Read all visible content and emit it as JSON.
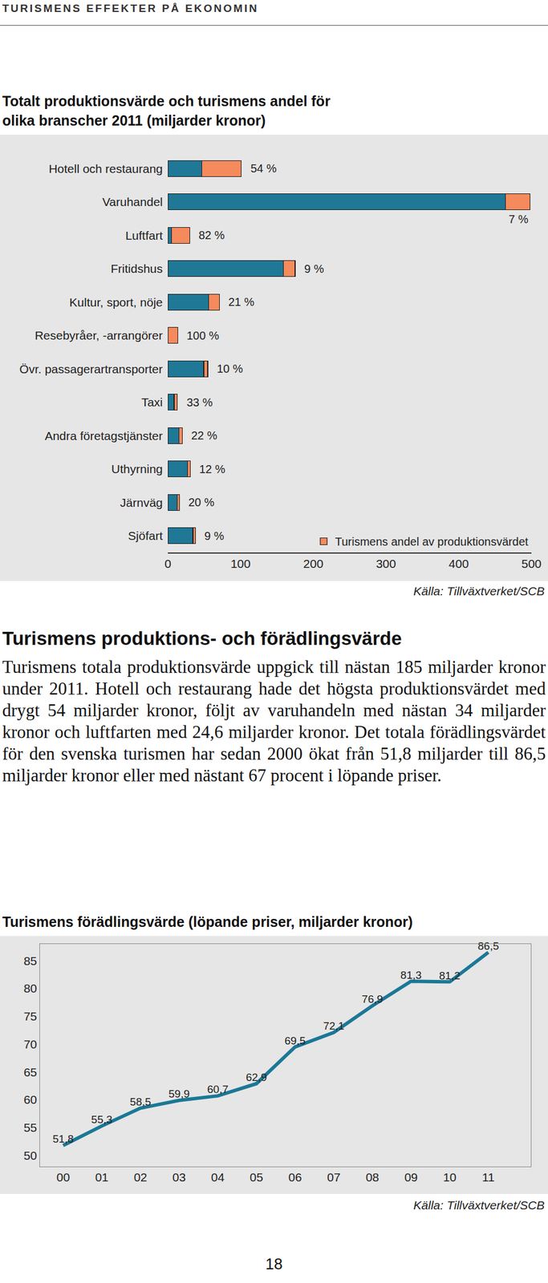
{
  "document": {
    "header": "TURISMENS EFFEKTER PÅ EKONOMIN",
    "heading": "Turismens produktions- och förädlingsvärde",
    "body": "Turismens totala produktionsvärde uppgick till nästan 185 miljarder kronor under 2011. Hotell och restaurang hade det högsta produktionsvärdet med drygt 54 miljarder kronor, följt av varuhandeln med nästan 34 miljarder kronor och luftfarten med 24,6 miljarder kronor. Det totala förädlingsvärdet för den svenska turismen har sedan 2000 ökat från 51,8 miljarder till 86,5 miljarder kronor eller med nästant 67 procent i löpande priser.",
    "page_number": "18"
  },
  "chart_data": [
    {
      "type": "bar",
      "title": "Totalt produktionsvärde och turismens andel för olika branscher 2011 (miljarder kronor)",
      "source": "Källa: Tillväxtverket/SCB",
      "orientation": "horizontal",
      "stacked": true,
      "categories": [
        "Hotell och restaurang",
        "Varuhandel",
        "Luftfart",
        "Fritidshus",
        "Kultur, sport, nöje",
        "Resebyråer, -arrangörer",
        "Övr. passagerartransporter",
        "Taxi",
        "Andra företagstjänster",
        "Uthyrning",
        "Järnväg",
        "Sjöfart"
      ],
      "series": [
        {
          "color": "#1f7896",
          "values": [
            47,
            464,
            5.4,
            159,
            56,
            0,
            49.5,
            8.7,
            15.6,
            27.3,
            12.8,
            34.6
          ]
        },
        {
          "name": "Turismens andel av produktionsvärdet",
          "color": "#f58a5c",
          "values": [
            54,
            34,
            24.6,
            16,
            15,
            13.5,
            5.5,
            4.3,
            4.4,
            3.7,
            3.2,
            3.4
          ]
        }
      ],
      "annotations": [
        "54 %",
        "7 %",
        "82 %",
        "9 %",
        "21 %",
        "100 %",
        "10 %",
        "33 %",
        "22 %",
        "12 %",
        "20 %",
        "9 %"
      ],
      "xlim": [
        0,
        500
      ],
      "xticks": [
        0,
        100,
        200,
        300,
        400,
        500
      ],
      "grid": false,
      "legend": "bottom right"
    },
    {
      "type": "line",
      "title": "Turismens förädlingsvärde (löpande priser, miljarder kronor)",
      "source": "Källa: Tillväxtverket/SCB",
      "categories": [
        "00",
        "01",
        "02",
        "03",
        "04",
        "05",
        "06",
        "07",
        "08",
        "09",
        "10",
        "11"
      ],
      "values": [
        51.8,
        55.3,
        58.5,
        59.9,
        60.7,
        62.9,
        69.5,
        72.1,
        76.9,
        81.3,
        81.2,
        86.5
      ],
      "value_labels": [
        "51,8",
        "55,3",
        "58,5",
        "59,9",
        "60,7",
        "62,9",
        "69,5",
        "72,1",
        "76,9",
        "81,3",
        "81,2",
        "86,5"
      ],
      "data_labels": true,
      "color": "#1b7896",
      "ylim": [
        48,
        88
      ],
      "yticks": [
        50,
        55,
        60,
        65,
        70,
        75,
        80,
        85
      ],
      "grid": false
    }
  ]
}
